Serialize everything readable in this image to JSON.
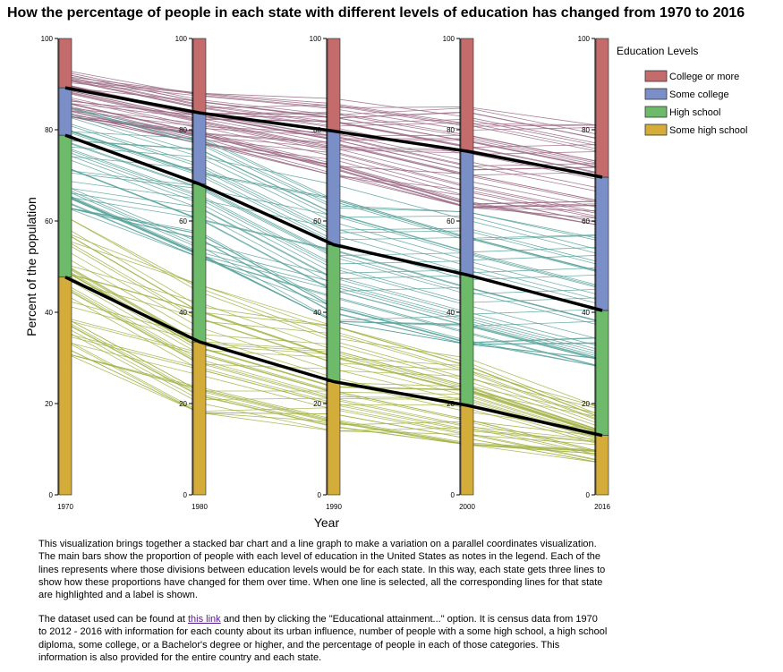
{
  "chart_data": {
    "type": "stacked bar with parallel line overlay",
    "title": "How the percentage of people in each state with different levels of education has changed from 1970 to 2016",
    "xlabel": "Year",
    "ylabel": "Percent of the population",
    "ylim": [
      0,
      100
    ],
    "y_ticks": [
      0,
      20,
      40,
      60,
      80,
      100
    ],
    "categories": [
      "1970",
      "1980",
      "1990",
      "2000",
      "2016"
    ],
    "legend_title": "Education Levels",
    "legend_position": "top-right",
    "colors": {
      "College or more": "#c46b6b",
      "Some college": "#7a8ec7",
      "High school": "#6dbb6a",
      "Some high school": "#d3ac3a",
      "college_line": "#9b6a85",
      "hs_line": "#5ba39c",
      "shs_line": "#a3b346"
    },
    "series": [
      {
        "name": "Some high school",
        "values": [
          47.7,
          33.5,
          24.8,
          19.6,
          13.0
        ]
      },
      {
        "name": "High school",
        "values": [
          31.1,
          34.6,
          30.0,
          28.6,
          27.4
        ]
      },
      {
        "name": "Some college",
        "values": [
          10.4,
          15.6,
          24.9,
          27.1,
          29.2
        ]
      },
      {
        "name": "College or more",
        "values": [
          10.8,
          16.3,
          20.3,
          24.7,
          30.4
        ]
      }
    ],
    "boundary_lines_US": {
      "college": [
        89.2,
        83.7,
        79.7,
        75.3,
        69.6
      ],
      "high_school": [
        78.8,
        68.1,
        54.8,
        48.2,
        40.4
      ],
      "some_high_school": [
        47.7,
        33.5,
        24.8,
        19.6,
        13.0
      ]
    },
    "state_line_ranges": {
      "college": [
        [
          83,
          93
        ],
        [
          77,
          88
        ],
        [
          70,
          87
        ],
        [
          63,
          85
        ],
        [
          59,
          81
        ]
      ],
      "high_school": [
        [
          63,
          85
        ],
        [
          52,
          79
        ],
        [
          38,
          68
        ],
        [
          33,
          62
        ],
        [
          28,
          57
        ]
      ],
      "some_high_school": [
        [
          31,
          61
        ],
        [
          18,
          46
        ],
        [
          14,
          37
        ],
        [
          11,
          30
        ],
        [
          7,
          19
        ]
      ]
    }
  },
  "description": {
    "p1": "This visualization brings together a stacked bar chart and a line graph to make a variation on a parallel coordinates visualization. The main bars show the proportion of people with each level of education in the United States as notes in the legend. Each of the lines represents where those divisions between education levels would be for each state. In this way, each state gets three lines to show how these proportions have changed for them over time. When one line is selected, all the corresponding lines for that state are highlighted and a label is shown.",
    "p2_before": "The dataset used can be found at ",
    "p2_link": "this link",
    "p2_after": " and then by clicking the \"Educational attainment...\" option. It is census data from 1970 to 2012 - 2016 with information for each county about its urban influence, number of people with a some high school, a high school diploma, some college, or a Bachelor's degree or higher, and the percentage of people in each of those categories. This information is also provided for the entire country and each state."
  }
}
